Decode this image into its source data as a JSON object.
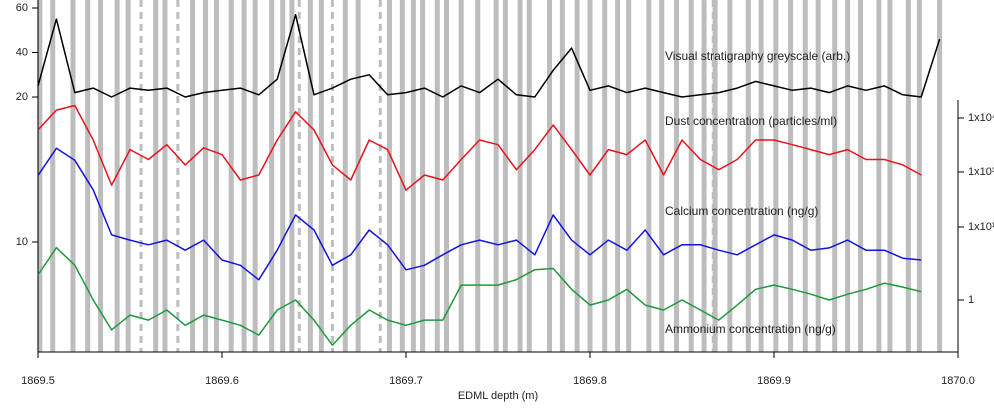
{
  "chart_data": {
    "type": "line",
    "xlabel": "EDML depth (m)",
    "xlim": [
      1869.5,
      1870.0
    ],
    "xticks": [
      1869.5,
      1869.6,
      1869.7,
      1869.8,
      1869.9,
      {
        "value": 1870.0,
        "label": "1870.0"
      }
    ],
    "x": [
      1869.5,
      1869.51,
      1869.52,
      1869.53,
      1869.54,
      1869.55,
      1869.56,
      1869.57,
      1869.58,
      1869.59,
      1869.6,
      1869.61,
      1869.62,
      1869.63,
      1869.64,
      1869.65,
      1869.66,
      1869.67,
      1869.68,
      1869.69,
      1869.7,
      1869.71,
      1869.72,
      1869.73,
      1869.74,
      1869.75,
      1869.76,
      1869.77,
      1869.78,
      1869.79,
      1869.8,
      1869.81,
      1869.82,
      1869.83,
      1869.84,
      1869.85,
      1869.86,
      1869.87,
      1869.88,
      1869.89,
      1869.9,
      1869.91,
      1869.92,
      1869.93,
      1869.94,
      1869.95,
      1869.96,
      1869.97,
      1869.98,
      1869.99
    ],
    "layer_boundaries": [
      1869.501,
      1869.508,
      1869.519,
      1869.527,
      1869.534,
      1869.543,
      1869.549,
      1869.564,
      1869.569,
      1869.584,
      1869.591,
      1869.597,
      1869.605,
      1869.612,
      1869.618,
      1869.627,
      1869.633,
      1869.638,
      1869.648,
      1869.654,
      1869.667,
      1869.674,
      1869.691,
      1869.698,
      1869.704,
      1869.709,
      1869.717,
      1869.722,
      1869.73,
      1869.739,
      1869.749,
      1869.754,
      1869.762,
      1869.767,
      1869.778,
      1869.785,
      1869.793,
      1869.8,
      1869.808,
      1869.815,
      1869.821,
      1869.832,
      1869.839,
      1869.847,
      1869.855,
      1869.862,
      1869.868,
      1869.876,
      1869.886,
      1869.893,
      1869.901,
      1869.909,
      1869.917,
      1869.924,
      1869.933,
      1869.94,
      1869.947,
      1869.957,
      1869.963,
      1869.973,
      1869.979,
      1869.99
    ],
    "uncertain_layer_boundaries": [
      1869.556,
      1869.576,
      1869.642,
      1869.66,
      1869.686,
      1869.867
    ],
    "layer_color": "#bdbdbd",
    "series": [
      {
        "name": "Visual stratigraphy greyscale (arb.)",
        "color": "#000000",
        "axis": "left",
        "log": false,
        "ylim": [
          17,
          62
        ],
        "yticks": [
          20,
          40,
          60
        ],
        "values": [
          25,
          55,
          22,
          24,
          20,
          24,
          23,
          24,
          20,
          22,
          23,
          24,
          21,
          28,
          57,
          21,
          24,
          28,
          30,
          21,
          22,
          24,
          20,
          25,
          22,
          28,
          21,
          20,
          32,
          42,
          23,
          25,
          22,
          24,
          22,
          20,
          21,
          22,
          24,
          27,
          25,
          23,
          24,
          22,
          25,
          23,
          25,
          21,
          20,
          46
        ]
      },
      {
        "name": "Dust concentration (particles/ml)",
        "color": "#e8141c",
        "axis": "right",
        "log": true,
        "ylim": [
          300,
          30000
        ],
        "yticks": [
          {
            "value": 1000,
            "label": "1x10³"
          },
          {
            "value": 10000,
            "label": "1x10⁴"
          }
        ],
        "values": [
          6000,
          14000,
          17000,
          3900,
          570,
          2600,
          1700,
          3200,
          1350,
          2800,
          2100,
          710,
          880,
          3900,
          13000,
          6000,
          1350,
          710,
          3900,
          2600,
          460,
          880,
          710,
          1700,
          3900,
          3200,
          1100,
          2600,
          7400,
          2600,
          880,
          2600,
          2100,
          3900,
          880,
          3900,
          1700,
          1100,
          1700,
          3900,
          3900,
          3200,
          2600,
          2100,
          2600,
          1700,
          1700,
          1350,
          880,
          null
        ]
      },
      {
        "name": "Calcium concentration (ng/g)",
        "color": "#1414e0",
        "axis": "left",
        "log": true,
        "ylim": [
          3,
          150
        ],
        "yticks": [
          10
        ],
        "values": [
          55,
          110,
          81,
          38,
          12,
          10.5,
          9.3,
          10.5,
          8.1,
          10.5,
          6.3,
          5.5,
          3.8,
          8.1,
          20,
          13.6,
          5.5,
          7.2,
          13.6,
          9.3,
          4.9,
          5.5,
          7.2,
          9.3,
          10.5,
          9.3,
          10.5,
          7.2,
          20,
          10.5,
          7.2,
          10.5,
          8.1,
          13.6,
          7.2,
          9.3,
          9.3,
          8.1,
          7.2,
          9.3,
          12,
          10.5,
          8.1,
          8.6,
          10.5,
          8.1,
          8.1,
          6.6,
          6.3,
          null
        ]
      },
      {
        "name": "Ammonium concentration (ng/g)",
        "color": "#1e9a3c",
        "axis": "right",
        "log": true,
        "ylim": [
          0.2,
          7
        ],
        "yticks": [
          1,
          {
            "value": 10,
            "label": "1x10¹"
          }
        ],
        "values": [
          2.2,
          5.2,
          3.0,
          1,
          0.39,
          0.62,
          0.53,
          0.73,
          0.45,
          0.62,
          0.53,
          0.45,
          0.33,
          0.73,
          1,
          0.53,
          0.24,
          0.45,
          0.73,
          0.53,
          0.45,
          0.53,
          0.53,
          1.6,
          1.6,
          1.6,
          1.9,
          2.6,
          2.7,
          1.4,
          0.85,
          1,
          1.4,
          0.85,
          0.73,
          1,
          0.73,
          0.53,
          0.85,
          1.4,
          1.6,
          1.4,
          1.2,
          1,
          1.2,
          1.4,
          1.7,
          1.5,
          1.3,
          null
        ]
      }
    ]
  }
}
